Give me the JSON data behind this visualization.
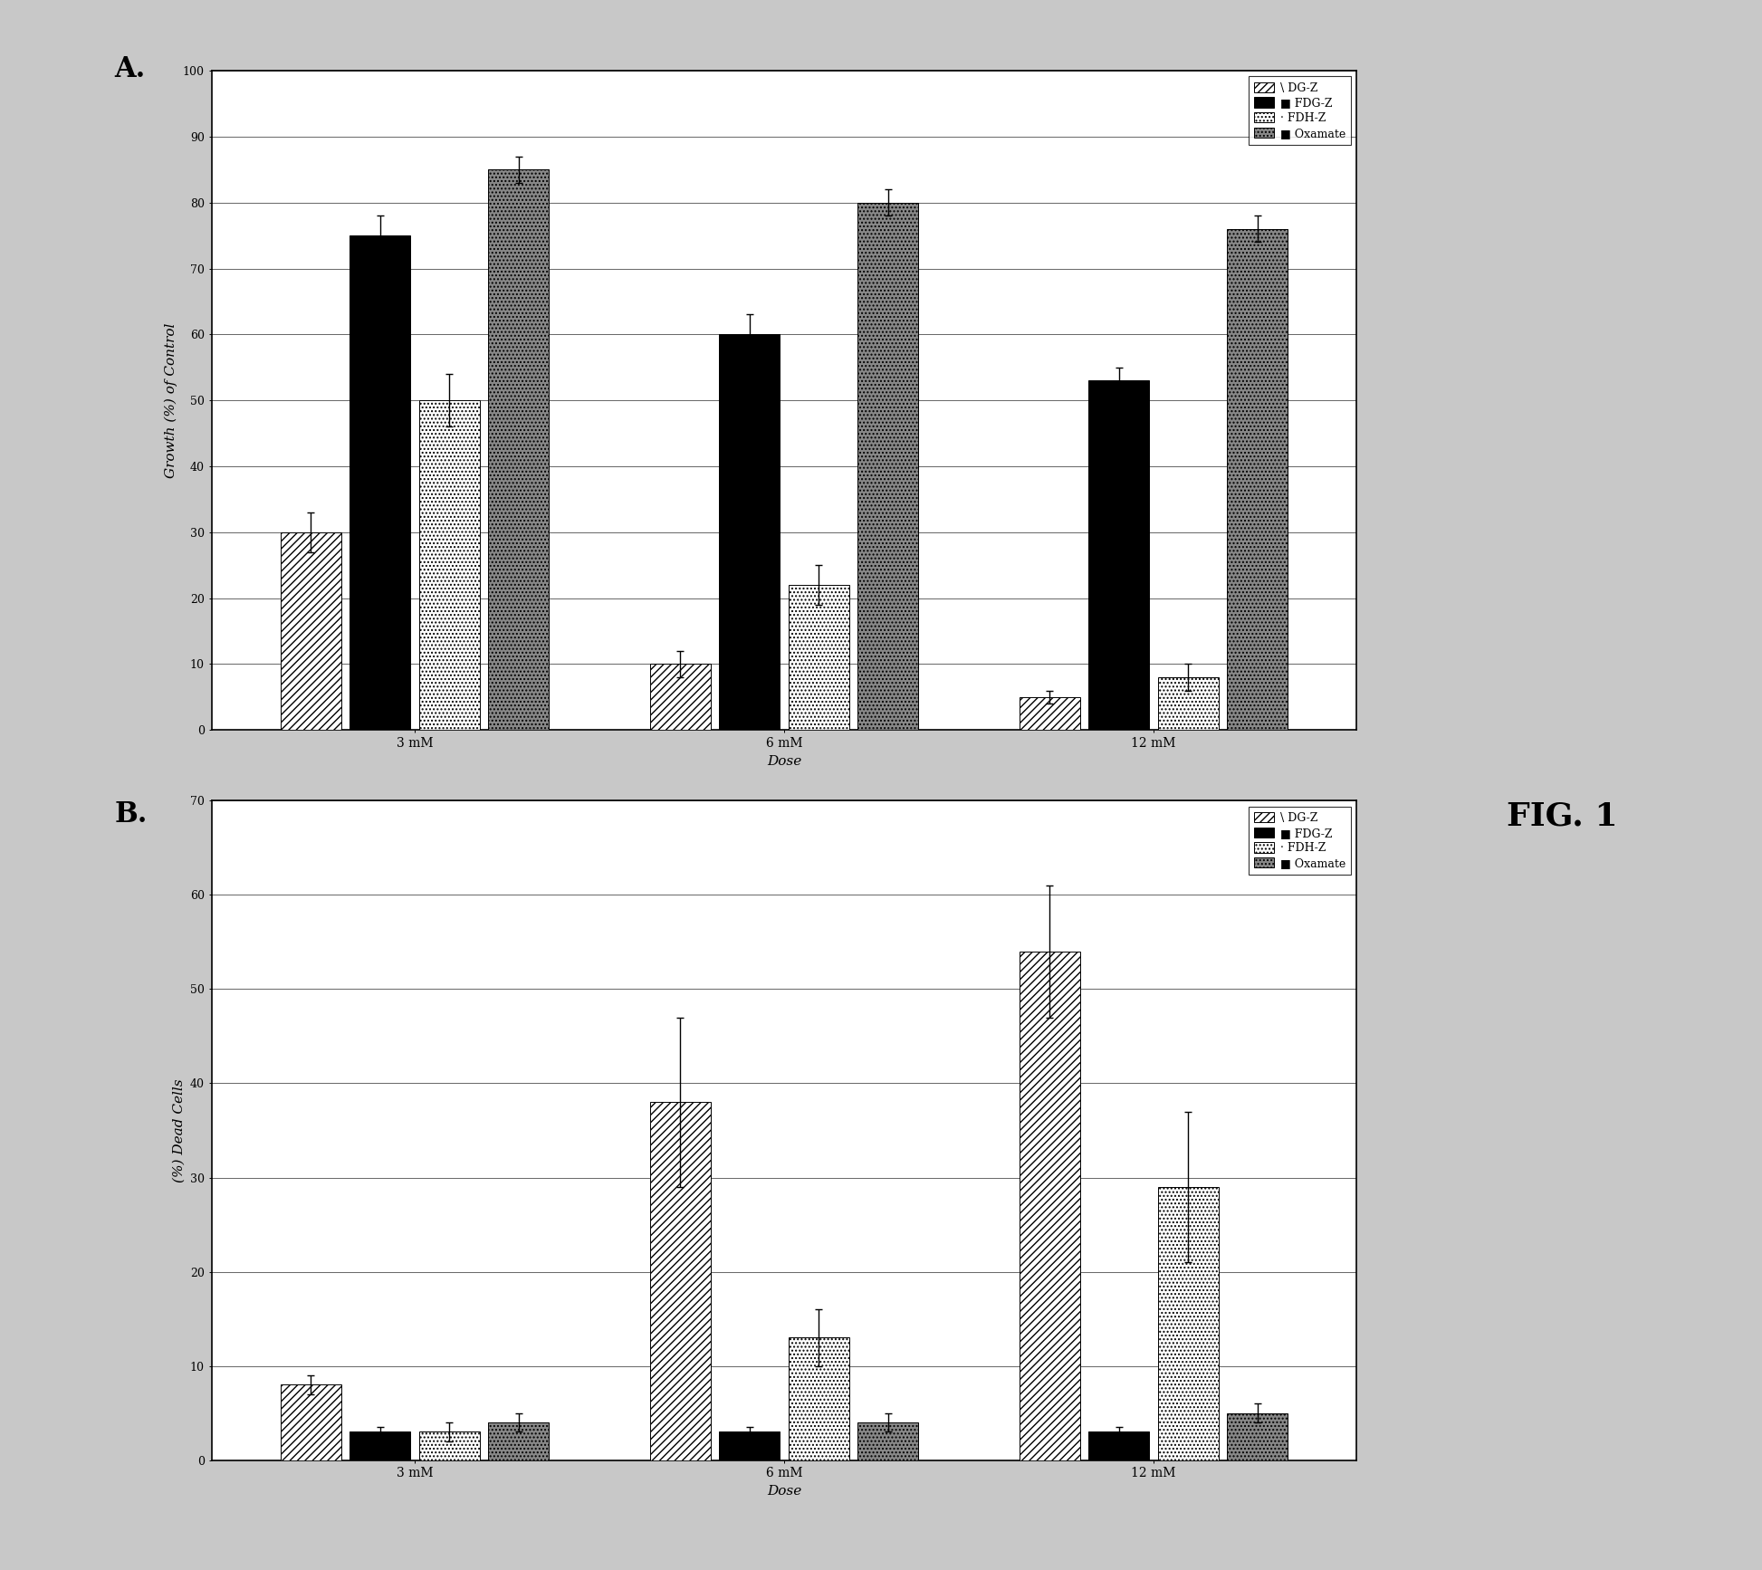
{
  "panel_A": {
    "ylabel": "Growth (%) of Control",
    "xlabel": "Dose",
    "ylim": [
      0,
      100
    ],
    "yticks": [
      0,
      10,
      20,
      30,
      40,
      50,
      60,
      70,
      80,
      90,
      100
    ],
    "categories": [
      "3 mM",
      "6 mM",
      "12 mM"
    ],
    "series": {
      "DG-Z": [
        30,
        10,
        5
      ],
      "FDG-Z": [
        75,
        60,
        53
      ],
      "FDH-Z": [
        50,
        22,
        8
      ],
      "Oxamate": [
        85,
        80,
        76
      ]
    },
    "errors": {
      "DG-Z": [
        3,
        2,
        1
      ],
      "FDG-Z": [
        3,
        3,
        2
      ],
      "FDH-Z": [
        4,
        3,
        2
      ],
      "Oxamate": [
        2,
        2,
        2
      ]
    }
  },
  "panel_B": {
    "ylabel": "(%) Dead Cells",
    "xlabel": "Dose",
    "ylim": [
      0,
      70
    ],
    "yticks": [
      0,
      10,
      20,
      30,
      40,
      50,
      60,
      70
    ],
    "categories": [
      "3 mM",
      "6 mM",
      "12 mM"
    ],
    "series": {
      "DG-Z": [
        8,
        38,
        54
      ],
      "FDG-Z": [
        3,
        3,
        3
      ],
      "FDH-Z": [
        3,
        13,
        29
      ],
      "Oxamate": [
        4,
        4,
        5
      ]
    },
    "errors": {
      "DG-Z": [
        1,
        9,
        7
      ],
      "FDG-Z": [
        0.5,
        0.5,
        0.5
      ],
      "FDH-Z": [
        1,
        3,
        8
      ],
      "Oxamate": [
        1,
        1,
        1
      ]
    }
  },
  "legend_labels": [
    "\\DG-Z",
    "FDG-Z",
    "FDH-Z",
    "Oxamate"
  ],
  "fig1_label": "FIG. 1",
  "background_color": "#c8c8c8",
  "plot_bg": "#ffffff",
  "panel_bg": "#e0e0e0"
}
